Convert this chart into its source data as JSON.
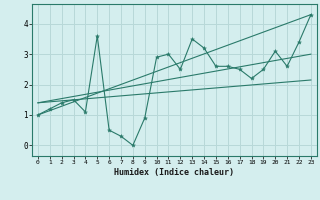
{
  "title": "",
  "xlabel": "Humidex (Indice chaleur)",
  "ylabel": "",
  "bg_color": "#d4eeee",
  "grid_color": "#b8d8d8",
  "line_color": "#2a7a6a",
  "xlim": [
    -0.5,
    23.5
  ],
  "ylim": [
    -0.35,
    4.65
  ],
  "xticks": [
    0,
    1,
    2,
    3,
    4,
    5,
    6,
    7,
    8,
    9,
    10,
    11,
    12,
    13,
    14,
    15,
    16,
    17,
    18,
    19,
    20,
    21,
    22,
    23
  ],
  "yticks": [
    0,
    1,
    2,
    3,
    4
  ],
  "main_x": [
    0,
    1,
    2,
    3,
    4,
    5,
    6,
    7,
    8,
    9,
    10,
    11,
    12,
    13,
    14,
    15,
    16,
    17,
    18,
    19,
    20,
    21,
    22,
    23
  ],
  "main_y": [
    1.0,
    1.2,
    1.4,
    1.5,
    1.1,
    3.6,
    0.5,
    0.3,
    0.0,
    0.9,
    2.9,
    3.0,
    2.5,
    3.5,
    3.2,
    2.6,
    2.6,
    2.5,
    2.2,
    2.5,
    3.1,
    2.6,
    3.4,
    4.3
  ],
  "line1_x": [
    0,
    23
  ],
  "line1_y": [
    1.0,
    4.3
  ],
  "line2_x": [
    0,
    23
  ],
  "line2_y": [
    1.4,
    3.0
  ],
  "line3_x": [
    0,
    23
  ],
  "line3_y": [
    1.4,
    2.15
  ]
}
